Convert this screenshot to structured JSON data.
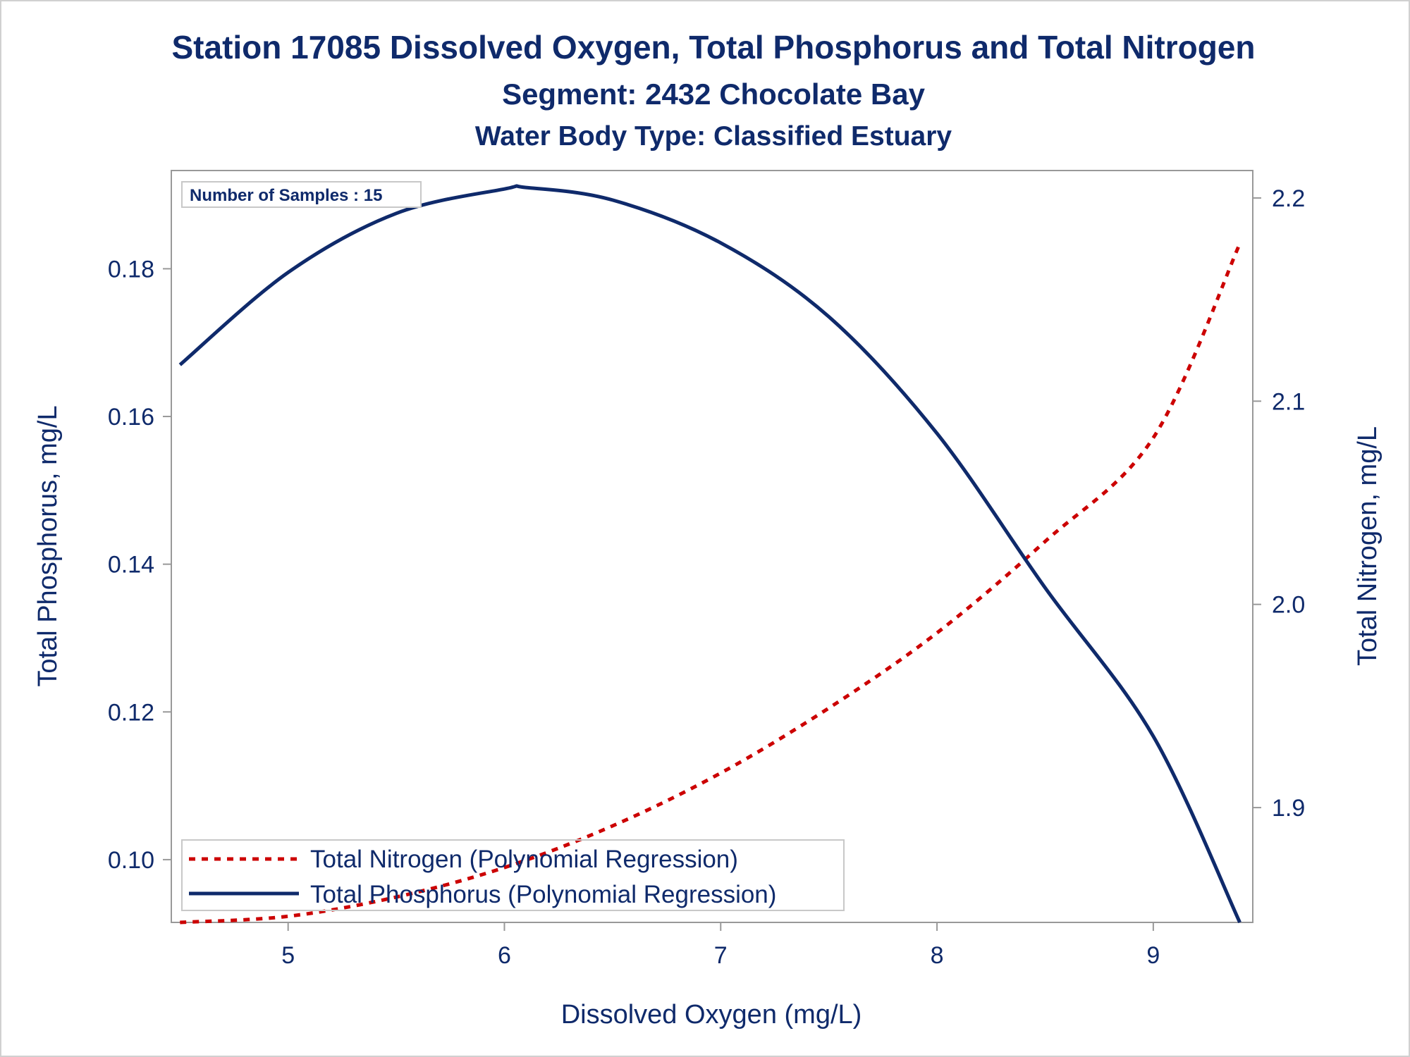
{
  "chart_data": {
    "type": "line",
    "title": "Station 17085  Dissolved Oxygen, Total Phosphorus and Total Nitrogen",
    "subtitle": "Segment: 2432  Chocolate Bay",
    "subtitle2": "Water Body Type: Classified Estuary",
    "xlabel": "Dissolved Oxygen (mg/L)",
    "ylabel": "Total Phosphorus, mg/L",
    "y2label": "Total Nitrogen, mg/L",
    "xlim": [
      4.46,
      9.46
    ],
    "ylim": [
      0.0915,
      0.1933
    ],
    "y2lim": [
      1.8435,
      2.2135
    ],
    "xticks": [
      "5",
      "6",
      "7",
      "8",
      "9"
    ],
    "yticks": [
      "0.10",
      "0.12",
      "0.14",
      "0.16",
      "0.18"
    ],
    "y2ticks": [
      "1.9",
      "2.0",
      "2.1",
      "2.2"
    ],
    "inset_label": "Number of Samples : 15",
    "legend_position": "bottom-left",
    "grid": false,
    "series": [
      {
        "name": "Total Nitrogen (Polynomial Regression)",
        "axis": "y2",
        "style": "dashed",
        "color": "#cc0000",
        "x": [
          4.5,
          5.0,
          5.5,
          6.0,
          6.5,
          7.0,
          7.5,
          8.0,
          8.5,
          9.0,
          9.4
        ],
        "values": [
          1.8435,
          1.8465,
          1.856,
          1.8705,
          1.891,
          1.917,
          1.949,
          1.986,
          2.031,
          2.082,
          2.1775
        ]
      },
      {
        "name": "Total Phosphorus (Polynomial Regression)",
        "axis": "y",
        "style": "solid",
        "color": "#0f2a6b",
        "x": [
          4.5,
          5.0,
          5.5,
          6.0,
          6.1,
          6.5,
          7.0,
          7.5,
          8.0,
          8.5,
          9.0,
          9.4
        ],
        "values": [
          0.167,
          0.1795,
          0.1875,
          0.1908,
          0.191,
          0.1893,
          0.1835,
          0.1735,
          0.1577,
          0.1368,
          0.1167,
          0.0915
        ]
      }
    ]
  }
}
